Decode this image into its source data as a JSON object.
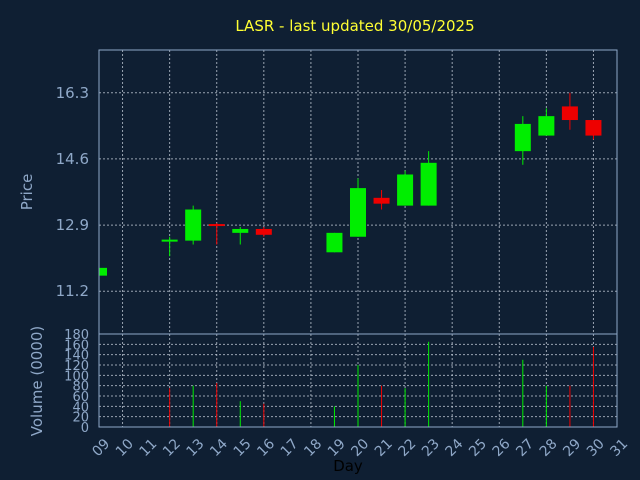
{
  "chart_data": [
    {
      "type": "candlestick",
      "title": "LASR - last updated 30/05/2025",
      "ylabel": "Price",
      "ylim": [
        10.1,
        17.4
      ],
      "yticks": [
        "11.2",
        "12.9",
        "14.6",
        "16.3"
      ],
      "grid": true,
      "colors": {
        "up": "#00ee00",
        "down": "#ee0000"
      },
      "candles": [
        {
          "day": "09",
          "open": 11.6,
          "close": 11.8,
          "high": 11.8,
          "low": 11.6
        },
        {
          "day": "12",
          "open": 12.5,
          "close": 12.5,
          "high": 12.6,
          "low": 12.1
        },
        {
          "day": "13",
          "open": 12.5,
          "close": 13.3,
          "high": 13.4,
          "low": 12.4
        },
        {
          "day": "14",
          "open": 12.9,
          "close": 12.85,
          "high": 12.95,
          "low": 12.4
        },
        {
          "day": "15",
          "open": 12.7,
          "close": 12.8,
          "high": 12.85,
          "low": 12.4
        },
        {
          "day": "16",
          "open": 12.8,
          "close": 12.65,
          "high": 12.85,
          "low": 12.6
        },
        {
          "day": "19",
          "open": 12.2,
          "close": 12.7,
          "high": 12.7,
          "low": 12.2
        },
        {
          "day": "20",
          "open": 12.6,
          "close": 13.85,
          "high": 14.1,
          "low": 12.6
        },
        {
          "day": "21",
          "open": 13.6,
          "close": 13.45,
          "high": 13.8,
          "low": 13.3
        },
        {
          "day": "22",
          "open": 13.4,
          "close": 14.2,
          "high": 14.3,
          "low": 13.4
        },
        {
          "day": "23",
          "open": 13.4,
          "close": 14.5,
          "high": 14.8,
          "low": 13.4
        },
        {
          "day": "27",
          "open": 14.8,
          "close": 15.5,
          "high": 15.7,
          "low": 14.45
        },
        {
          "day": "28",
          "open": 15.2,
          "close": 15.7,
          "high": 15.9,
          "low": 15.2
        },
        {
          "day": "29",
          "open": 15.95,
          "close": 15.6,
          "high": 16.3,
          "low": 15.35
        },
        {
          "day": "30",
          "open": 15.6,
          "close": 15.2,
          "high": 15.6,
          "low": 15.1
        }
      ]
    },
    {
      "type": "bar",
      "ylabel": "Volume (0000)",
      "xlabel": "Day",
      "ylim": [
        0,
        180
      ],
      "yticks": [
        "0",
        "20",
        "40",
        "60",
        "80",
        "100",
        "120",
        "140",
        "160",
        "180"
      ],
      "xticks": [
        "09",
        "10",
        "11",
        "12",
        "13",
        "14",
        "15",
        "16",
        "17",
        "18",
        "19",
        "20",
        "21",
        "22",
        "23",
        "24",
        "25",
        "26",
        "27",
        "28",
        "29",
        "30",
        "31"
      ],
      "grid": true,
      "volumes": [
        {
          "day": "09",
          "value": 0,
          "dir": "up"
        },
        {
          "day": "12",
          "value": 75,
          "dir": "down"
        },
        {
          "day": "13",
          "value": 80,
          "dir": "up"
        },
        {
          "day": "14",
          "value": 85,
          "dir": "down"
        },
        {
          "day": "15",
          "value": 50,
          "dir": "up"
        },
        {
          "day": "16",
          "value": 45,
          "dir": "down"
        },
        {
          "day": "19",
          "value": 40,
          "dir": "up"
        },
        {
          "day": "20",
          "value": 120,
          "dir": "up"
        },
        {
          "day": "21",
          "value": 80,
          "dir": "down"
        },
        {
          "day": "22",
          "value": 75,
          "dir": "up"
        },
        {
          "day": "23",
          "value": 165,
          "dir": "up"
        },
        {
          "day": "27",
          "value": 130,
          "dir": "up"
        },
        {
          "day": "28",
          "value": 80,
          "dir": "up"
        },
        {
          "day": "29",
          "value": 80,
          "dir": "down"
        },
        {
          "day": "30",
          "value": 155,
          "dir": "down"
        }
      ]
    }
  ]
}
